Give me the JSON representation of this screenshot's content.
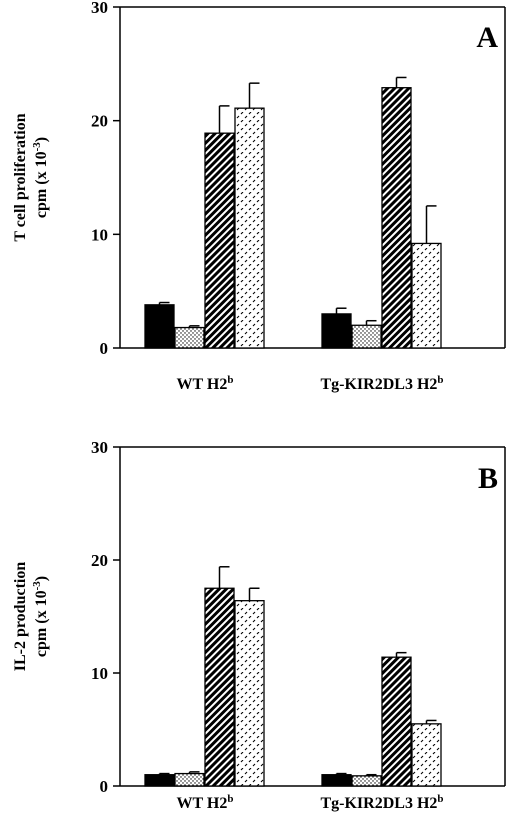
{
  "chart_data": [
    {
      "type": "bar",
      "panel_label": "A",
      "ylabel_line1": "T cell proliferation",
      "ylabel_line2": "cpm (x 10",
      "ylabel_exp": "-3",
      "ylabel_close": ")",
      "ylim": [
        0,
        30
      ],
      "yticks": [
        "0",
        "10",
        "20",
        "30"
      ],
      "groups": [
        {
          "label": "WT H2",
          "sup": "b"
        },
        {
          "label": "Tg-KIR2DL3 H2",
          "sup": "b"
        }
      ],
      "series": [
        {
          "pattern": "solid-black",
          "values": [
            3.8,
            3.0
          ],
          "errors": [
            0.2,
            0.5
          ]
        },
        {
          "pattern": "dots",
          "values": [
            1.8,
            2.0
          ],
          "errors": [
            0.15,
            0.4
          ]
        },
        {
          "pattern": "diagonal-hatch",
          "values": [
            18.9,
            22.9
          ],
          "errors": [
            2.4,
            0.9
          ]
        },
        {
          "pattern": "dashes",
          "values": [
            21.1,
            9.2
          ],
          "errors": [
            2.2,
            3.3
          ]
        }
      ]
    },
    {
      "type": "bar",
      "panel_label": "B",
      "ylabel_line1": "IL-2 production",
      "ylabel_line2": "cpm (x 10",
      "ylabel_exp": "-3",
      "ylabel_close": ")",
      "ylim": [
        0,
        30
      ],
      "yticks": [
        "0",
        "10",
        "20",
        "30"
      ],
      "groups": [
        {
          "label": "WT H2",
          "sup": "b"
        },
        {
          "label": "Tg-KIR2DL3 H2",
          "sup": "b"
        }
      ],
      "series": [
        {
          "pattern": "solid-black",
          "values": [
            1.0,
            1.0
          ],
          "errors": [
            0.1,
            0.1
          ]
        },
        {
          "pattern": "dots",
          "values": [
            1.1,
            0.9
          ],
          "errors": [
            0.15,
            0.1
          ]
        },
        {
          "pattern": "diagonal-hatch",
          "values": [
            17.5,
            11.4
          ],
          "errors": [
            1.9,
            0.4
          ]
        },
        {
          "pattern": "dashes",
          "values": [
            16.4,
            5.5
          ],
          "errors": [
            1.1,
            0.3
          ]
        }
      ]
    }
  ]
}
